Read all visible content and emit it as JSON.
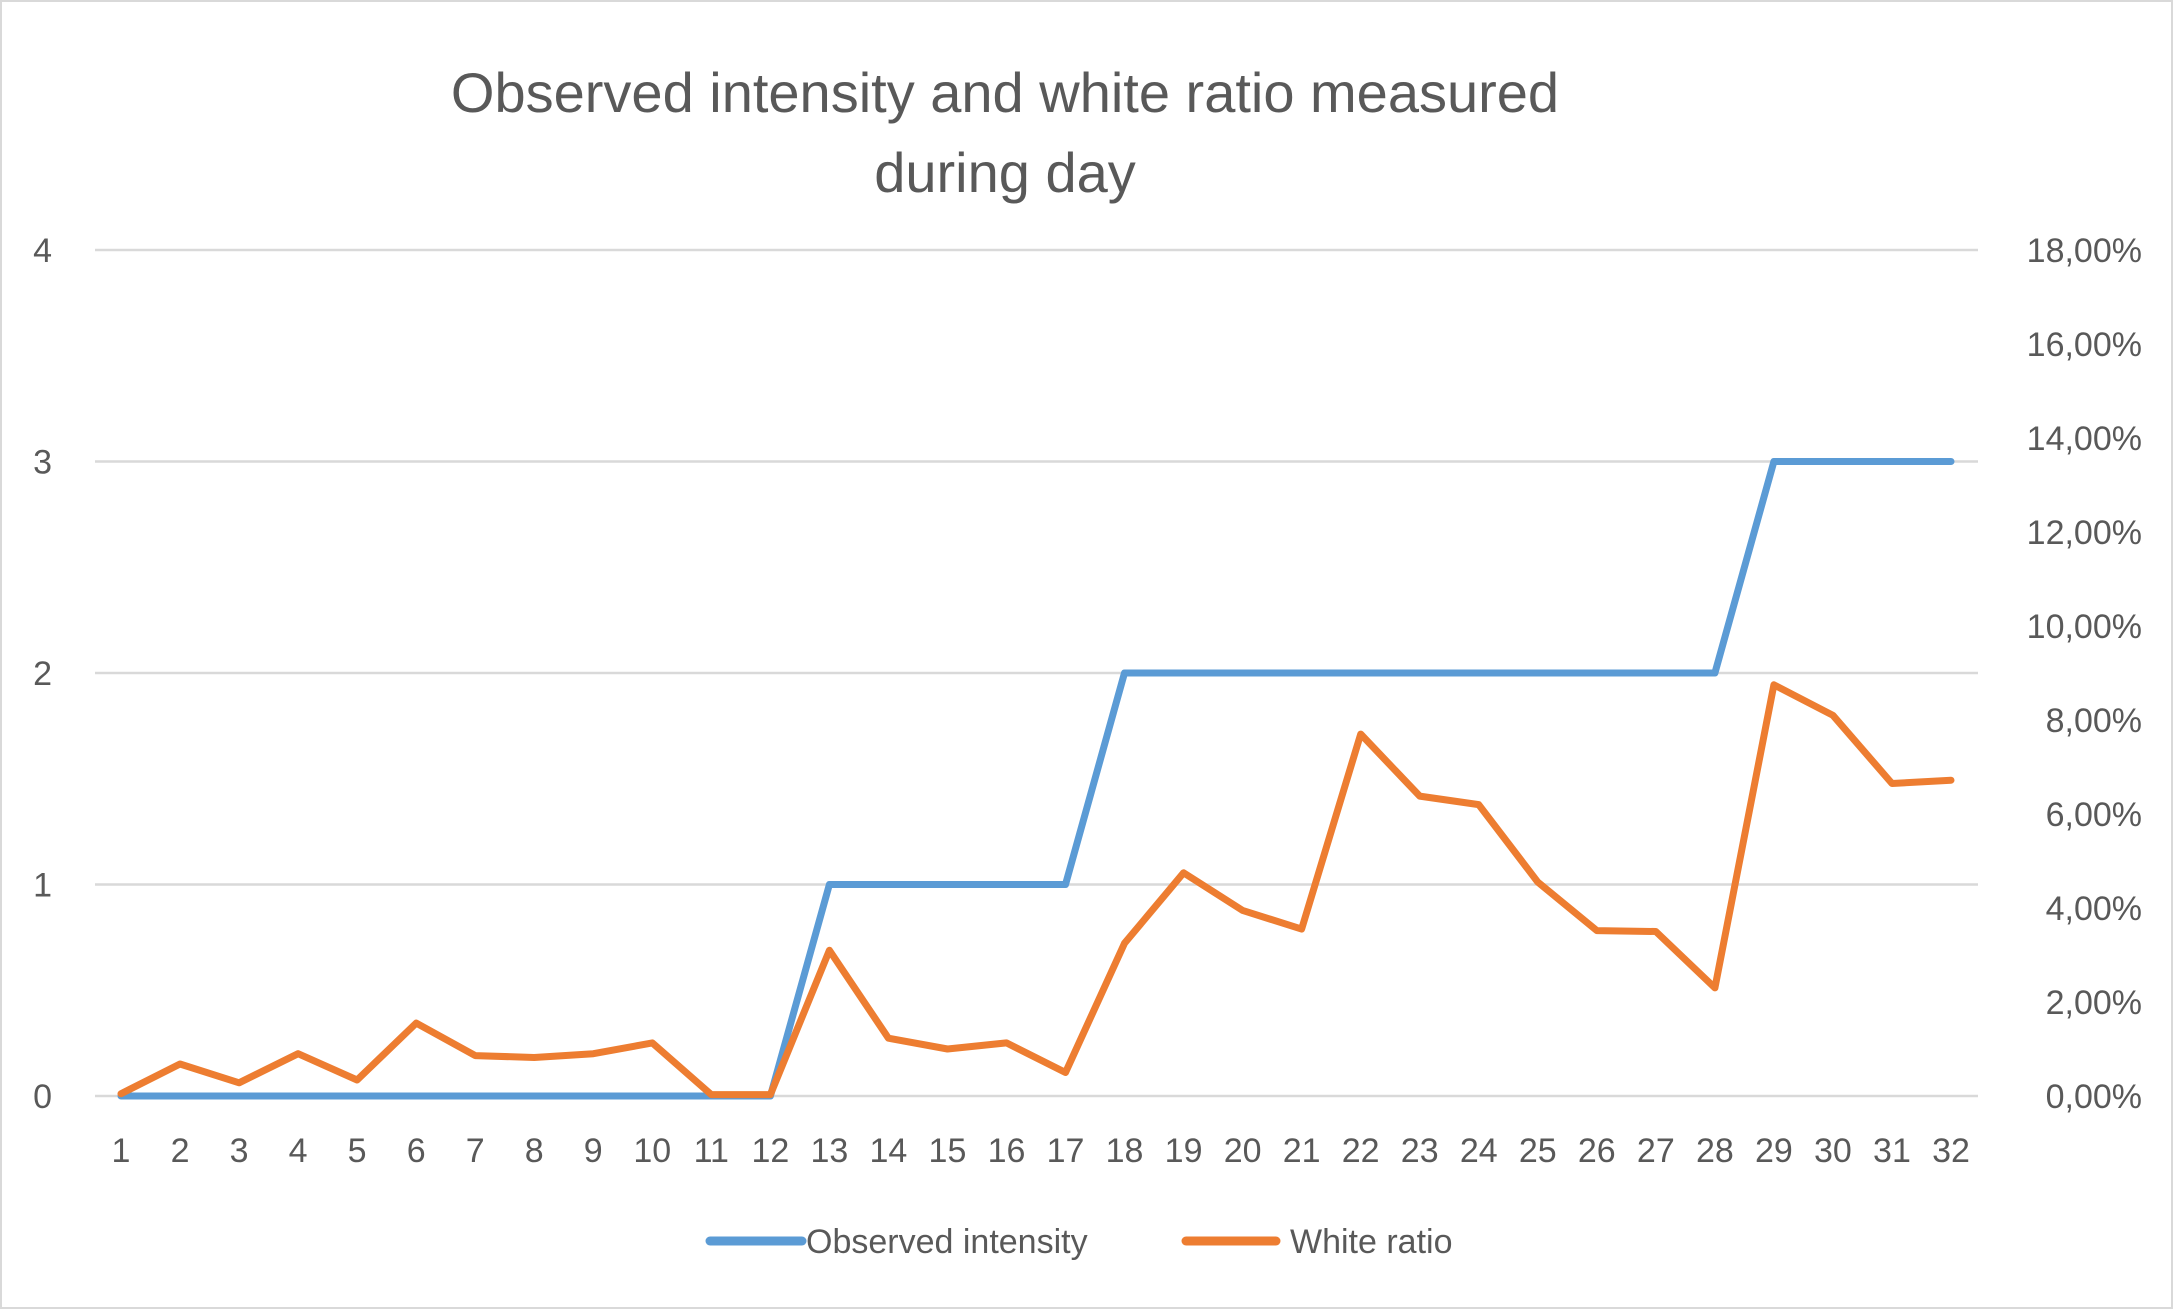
{
  "chart_data": {
    "type": "line",
    "title_lines": [
      "Observed intensity and white ratio measured",
      "during day"
    ],
    "xlabel": "",
    "ylabel": "",
    "y2label": "",
    "categories": [
      "1",
      "2",
      "3",
      "4",
      "5",
      "6",
      "7",
      "8",
      "9",
      "10",
      "11",
      "12",
      "13",
      "14",
      "15",
      "16",
      "17",
      "18",
      "19",
      "20",
      "21",
      "22",
      "23",
      "24",
      "25",
      "26",
      "27",
      "28",
      "29",
      "30",
      "31",
      "32"
    ],
    "y_ticks": [
      "0",
      "1",
      "2",
      "3",
      "4"
    ],
    "y2_ticks": [
      "0,00%",
      "2,00%",
      "4,00%",
      "6,00%",
      "8,00%",
      "10,00%",
      "12,00%",
      "14,00%",
      "16,00%",
      "18,00%"
    ],
    "ylim": [
      0,
      4
    ],
    "y2lim": [
      0,
      0.18
    ],
    "grid": true,
    "legend_position": "bottom",
    "series": [
      {
        "name": "Observed intensity",
        "axis": "left",
        "color": "#5B9BD5",
        "values": [
          0,
          0,
          0,
          0,
          0,
          0,
          0,
          0,
          0,
          0,
          0,
          0,
          1,
          1,
          1,
          1,
          1,
          2,
          2,
          2,
          2,
          2,
          2,
          2,
          2,
          2,
          2,
          2,
          3,
          3,
          3,
          3
        ]
      },
      {
        "name": "White ratio",
        "axis": "right",
        "color": "#ED7D31",
        "values": [
          0.0005,
          0.0068,
          0.0028,
          0.009,
          0.0034,
          0.0155,
          0.0086,
          0.0082,
          0.009,
          0.0113,
          0.0003,
          0.0003,
          0.031,
          0.0123,
          0.01,
          0.0113,
          0.005,
          0.0325,
          0.0475,
          0.0395,
          0.0355,
          0.077,
          0.0638,
          0.062,
          0.0455,
          0.0352,
          0.035,
          0.023,
          0.0875,
          0.081,
          0.0665,
          0.0672
        ]
      }
    ]
  }
}
